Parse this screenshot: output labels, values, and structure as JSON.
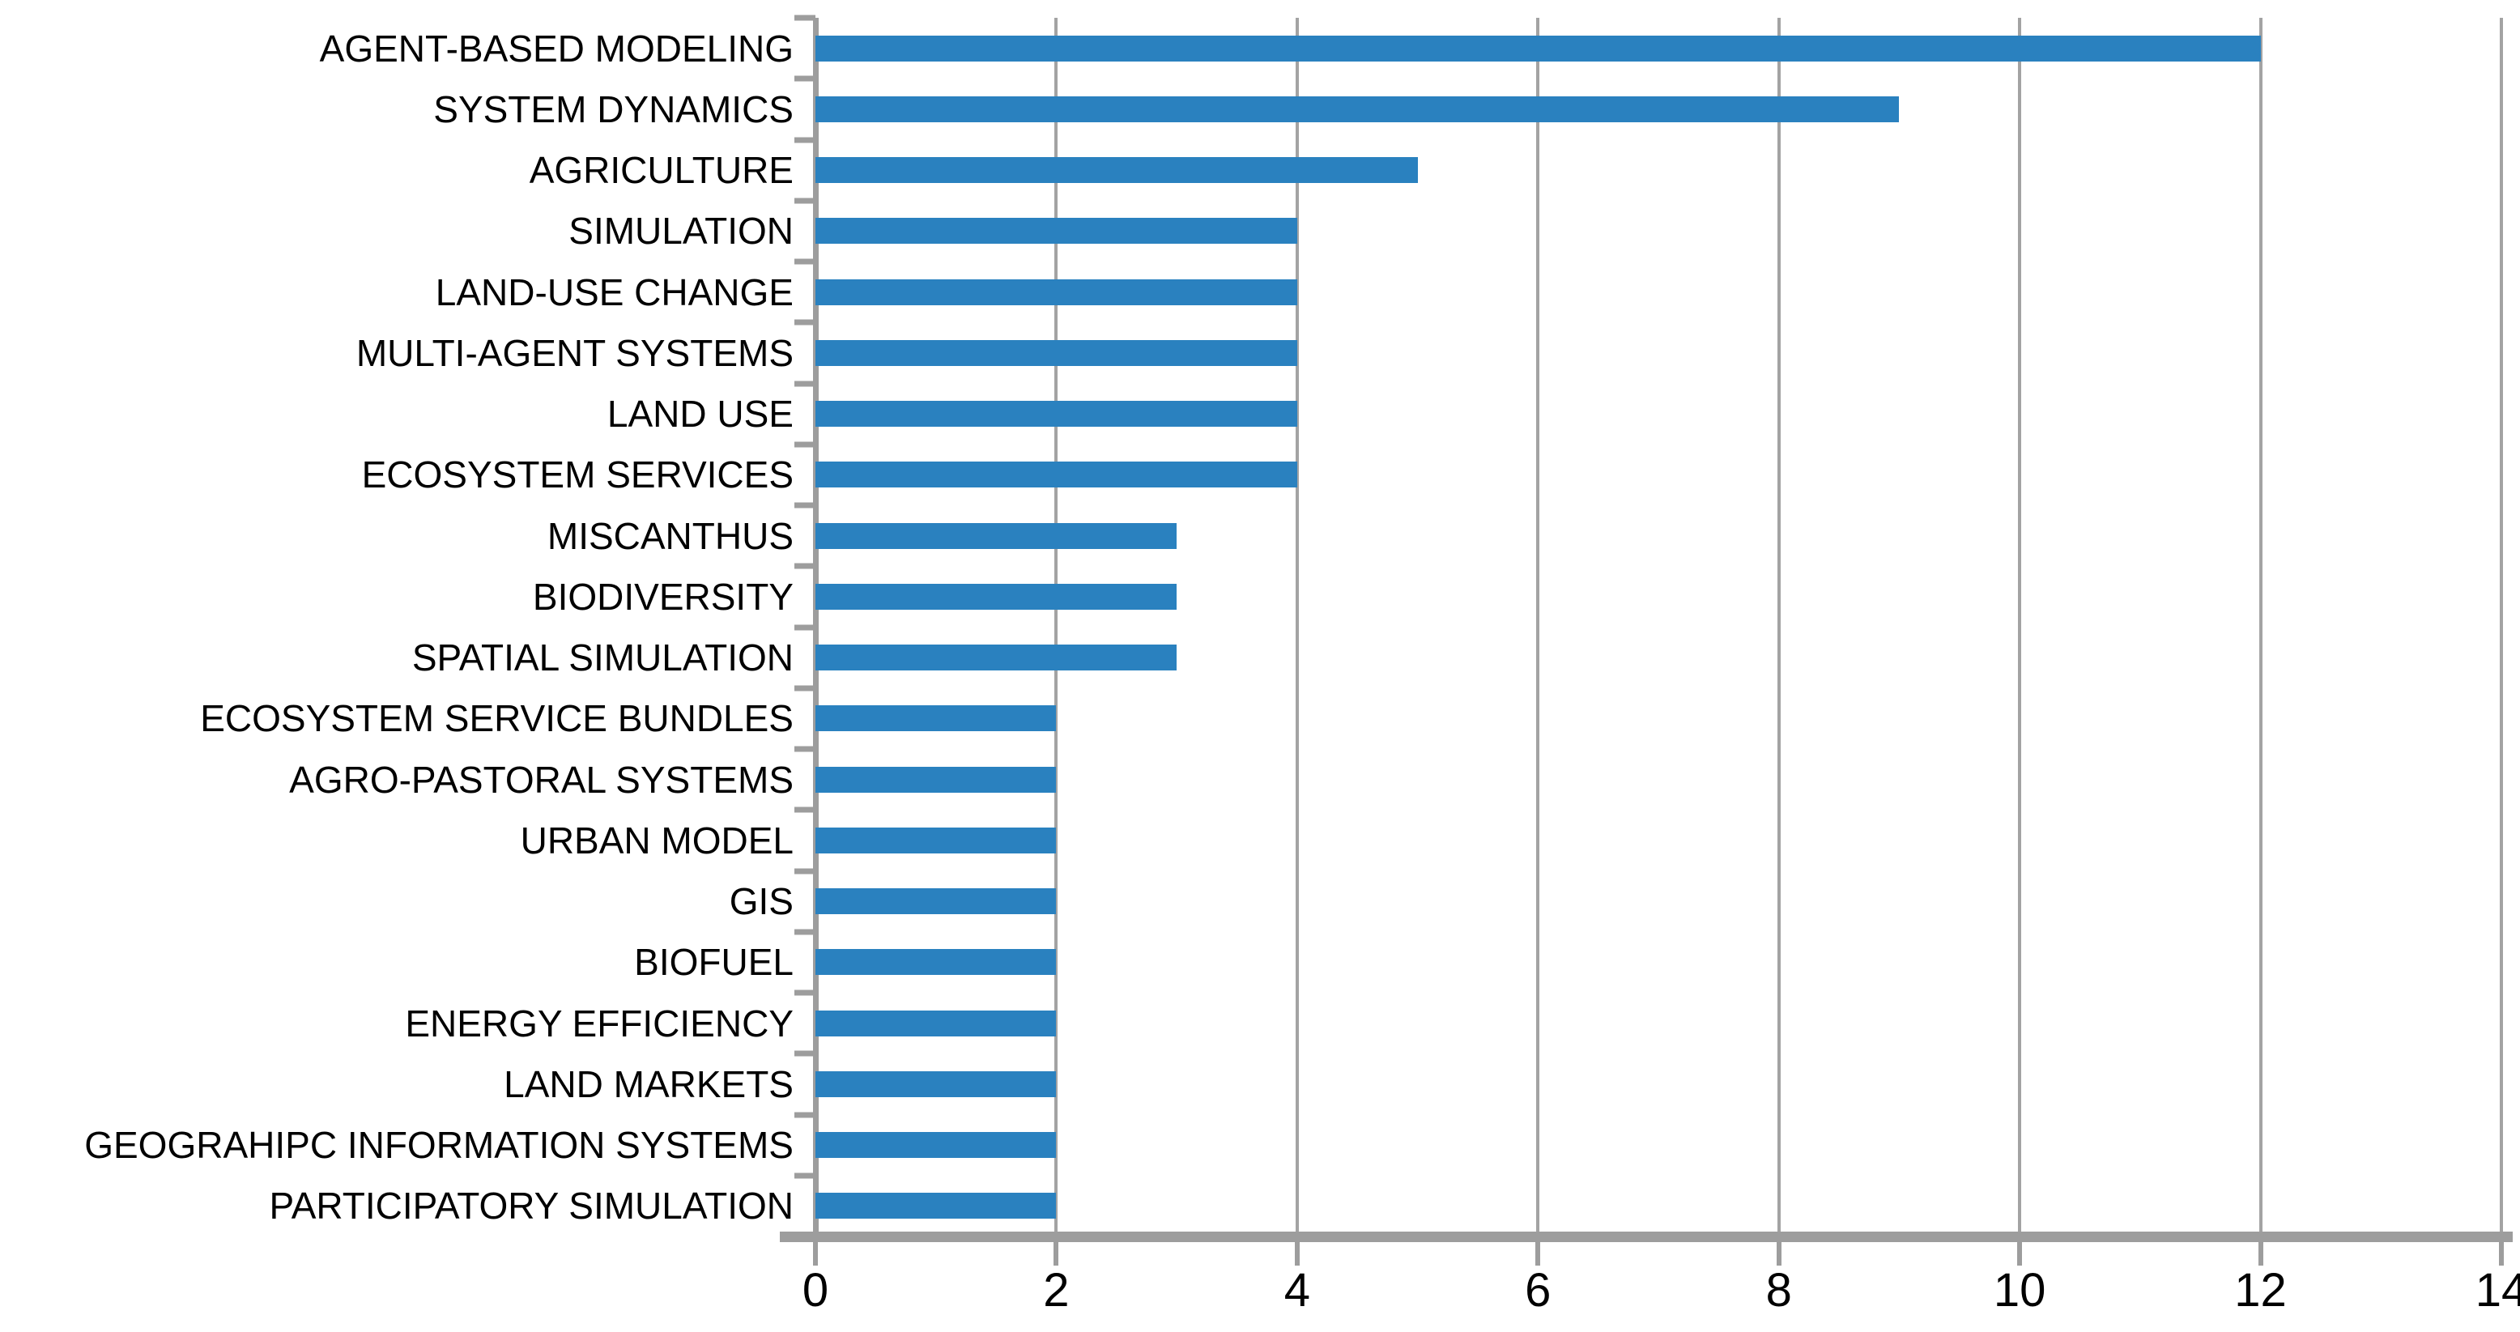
{
  "chart_data": {
    "type": "bar",
    "orientation": "horizontal",
    "title": "",
    "categories": [
      "AGENT-BASED MODELING",
      "SYSTEM DYNAMICS",
      "AGRICULTURE",
      "SIMULATION",
      "LAND-USE CHANGE",
      "MULTI-AGENT SYSTEMS",
      "LAND USE",
      "ECOSYSTEM SERVICES",
      "MISCANTHUS",
      "BIODIVERSITY",
      "SPATIAL SIMULATION",
      "ECOSYSTEM SERVICE BUNDLES",
      "AGRO-PASTORAL SYSTEMS",
      "URBAN MODEL",
      "GIS",
      "BIOFUEL",
      "ENERGY EFFICIENCY",
      "LAND MARKETS",
      "GEOGRAHIPC INFORMATION SYSTEMS",
      "PARTICIPATORY SIMULATION"
    ],
    "values": [
      12,
      9,
      5,
      4,
      4,
      4,
      4,
      4,
      3,
      3,
      3,
      2,
      2,
      2,
      2,
      2,
      2,
      2,
      2,
      2
    ],
    "xlabel": "",
    "ylabel": "",
    "xlim": [
      0,
      14
    ],
    "x_ticks": [
      "0",
      "2",
      "4",
      "6",
      "8",
      "10",
      "12",
      "14"
    ],
    "x_tick_values": [
      0,
      2,
      4,
      6,
      8,
      10,
      12,
      14
    ],
    "grid": "vertical-only",
    "legend": "none",
    "colors": {
      "bar": "#2A81BF",
      "grid": "#A3A3A3",
      "axis": "#9D9D9D",
      "text": "#000000",
      "background": "#FFFFFF"
    }
  }
}
